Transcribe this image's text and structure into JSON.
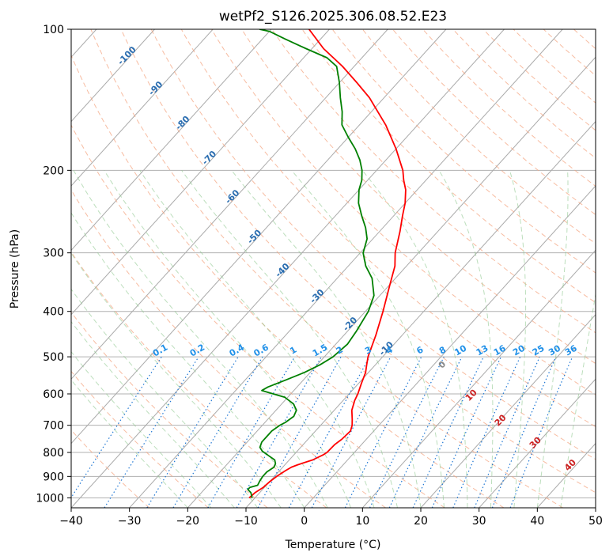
{
  "chart_data": {
    "type": "line",
    "subtype": "skew-t log-p diagram",
    "title": "wetPf2_S126.2025.306.08.52.E23",
    "xlabel": "Temperature (°C)",
    "ylabel": "Pressure (hPa)",
    "xlim": [
      -40,
      50
    ],
    "ylim": [
      1050,
      100
    ],
    "y_scale": "log",
    "grid": true,
    "x_ticks": [
      -40,
      -30,
      -20,
      -10,
      0,
      10,
      20,
      30,
      40,
      50
    ],
    "y_ticks": [
      100,
      200,
      300,
      400,
      500,
      600,
      700,
      800,
      900,
      1000
    ],
    "series": [
      {
        "role": "temperature",
        "color": "#ff0000",
        "points": [
          [
            1000,
            -11
          ],
          [
            975,
            -10.8
          ],
          [
            950,
            -10.2
          ],
          [
            925,
            -10
          ],
          [
            900,
            -9.6
          ],
          [
            875,
            -9
          ],
          [
            860,
            -8.5
          ],
          [
            850,
            -7.8
          ],
          [
            830,
            -6
          ],
          [
            810,
            -5
          ],
          [
            800,
            -4.7
          ],
          [
            770,
            -4.6
          ],
          [
            750,
            -4.2
          ],
          [
            720,
            -4
          ],
          [
            700,
            -4.6
          ],
          [
            680,
            -5.5
          ],
          [
            650,
            -7
          ],
          [
            620,
            -8
          ],
          [
            600,
            -8.5
          ],
          [
            570,
            -9.5
          ],
          [
            540,
            -10.5
          ],
          [
            520,
            -11.5
          ],
          [
            500,
            -12.5
          ],
          [
            450,
            -14.5
          ],
          [
            400,
            -17
          ],
          [
            350,
            -20
          ],
          [
            320,
            -22
          ],
          [
            300,
            -24
          ],
          [
            270,
            -26.5
          ],
          [
            250,
            -28.5
          ],
          [
            235,
            -30
          ],
          [
            220,
            -32
          ],
          [
            210,
            -33.8
          ],
          [
            200,
            -35.5
          ],
          [
            180,
            -40
          ],
          [
            160,
            -45.5
          ],
          [
            140,
            -52.5
          ],
          [
            130,
            -57
          ],
          [
            120,
            -62
          ],
          [
            110,
            -68
          ],
          [
            100,
            -73.5
          ]
        ]
      },
      {
        "role": "dewpoint",
        "color": "#008000",
        "points": [
          [
            1000,
            -10.5
          ],
          [
            975,
            -11.5
          ],
          [
            960,
            -12.5
          ],
          [
            950,
            -12.5
          ],
          [
            940,
            -11.5
          ],
          [
            920,
            -11.8
          ],
          [
            900,
            -12
          ],
          [
            880,
            -12
          ],
          [
            860,
            -11.5
          ],
          [
            845,
            -11.8
          ],
          [
            830,
            -12.5
          ],
          [
            810,
            -14.5
          ],
          [
            795,
            -16
          ],
          [
            780,
            -17
          ],
          [
            760,
            -17.5
          ],
          [
            740,
            -17.5
          ],
          [
            720,
            -17.5
          ],
          [
            700,
            -17
          ],
          [
            690,
            -16.5
          ],
          [
            670,
            -16
          ],
          [
            650,
            -16.5
          ],
          [
            630,
            -18
          ],
          [
            610,
            -20.5
          ],
          [
            600,
            -23
          ],
          [
            590,
            -25.5
          ],
          [
            580,
            -25
          ],
          [
            560,
            -23
          ],
          [
            540,
            -21
          ],
          [
            520,
            -19.5
          ],
          [
            500,
            -18.5
          ],
          [
            470,
            -18
          ],
          [
            440,
            -18.5
          ],
          [
            400,
            -19.5
          ],
          [
            370,
            -21
          ],
          [
            340,
            -24
          ],
          [
            320,
            -27
          ],
          [
            300,
            -29.5
          ],
          [
            280,
            -31
          ],
          [
            265,
            -33
          ],
          [
            250,
            -35.5
          ],
          [
            235,
            -38
          ],
          [
            220,
            -40
          ],
          [
            210,
            -41
          ],
          [
            200,
            -42.5
          ],
          [
            190,
            -44.5
          ],
          [
            180,
            -47
          ],
          [
            170,
            -50
          ],
          [
            160,
            -53
          ],
          [
            150,
            -55
          ],
          [
            140,
            -57.5
          ],
          [
            130,
            -60
          ],
          [
            120,
            -63
          ],
          [
            115,
            -66
          ],
          [
            110,
            -71
          ],
          [
            105,
            -76
          ],
          [
            101,
            -80
          ],
          [
            100,
            -82
          ]
        ]
      }
    ],
    "dry_adiabat_labels": [
      -100,
      -90,
      -80,
      -70,
      -60,
      -50,
      -40,
      -30,
      -20,
      -10
    ],
    "mixing_ratio_labels": [
      "0.1",
      "0.2",
      "0.4",
      "0.6",
      "1",
      "1.5",
      "2",
      "3",
      "4",
      "6",
      "8",
      "10",
      "13",
      "16",
      "20",
      "25",
      "30",
      "36"
    ],
    "moist_adiabat_labels": [
      "0",
      "10",
      "20",
      "30",
      "40"
    ]
  }
}
